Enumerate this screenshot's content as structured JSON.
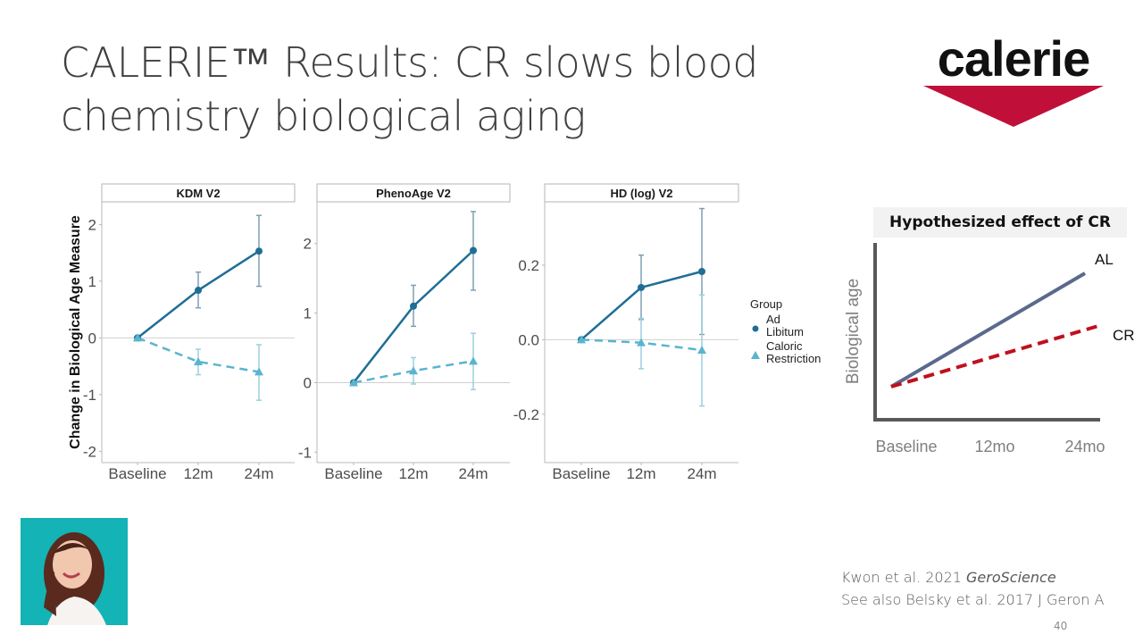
{
  "slide": {
    "title_line1": "CALERIE™ Results: CR slows blood",
    "title_line2": "chemistry biological aging",
    "logo_text": "calerie",
    "logo_color": "#c0103a",
    "reference_line1_prefix": "Kwon et al. 2021 ",
    "reference_line1_journal": "GeroScience",
    "reference_line2": "See also Belsky et al. 2017 J Geron A",
    "page_number": "40",
    "photo_alt": "speaker-photo"
  },
  "chart_data": [
    {
      "type": "line",
      "title": "KDM V2",
      "ylabel": "Change in Biological Age Measure",
      "xlabel": "",
      "x": [
        "Baseline",
        "12m",
        "24m"
      ],
      "ylim": [
        -2.2,
        2.4
      ],
      "yticks": [
        -2,
        -1,
        0,
        1,
        2
      ],
      "ytick_labels": [
        "-2",
        "-1",
        "0",
        "1",
        "2"
      ],
      "series": [
        {
          "name": "Ad Libitum",
          "color": "#1f6e96",
          "marker": "circle",
          "dash": false,
          "values": [
            0,
            0.84,
            1.53
          ],
          "err_low": [
            0,
            0.53,
            0.91
          ],
          "err_high": [
            0,
            1.16,
            2.16
          ]
        },
        {
          "name": "Caloric Restriction",
          "color": "#5ab4cf",
          "marker": "triangle",
          "dash": true,
          "values": [
            0,
            -0.42,
            -0.6
          ],
          "err_low": [
            0,
            -0.65,
            -1.1
          ],
          "err_high": [
            0,
            -0.2,
            -0.12
          ]
        }
      ]
    },
    {
      "type": "line",
      "title": "PhenoAge V2",
      "ylabel": "",
      "xlabel": "",
      "x": [
        "Baseline",
        "12m",
        "24m"
      ],
      "ylim": [
        -1.15,
        2.6
      ],
      "yticks": [
        -1,
        0,
        1,
        2
      ],
      "ytick_labels": [
        "-1",
        "0",
        "1",
        "2"
      ],
      "series": [
        {
          "name": "Ad Libitum",
          "color": "#1f6e96",
          "marker": "circle",
          "dash": false,
          "values": [
            0,
            1.1,
            1.9
          ],
          "err_low": [
            0,
            0.81,
            1.33
          ],
          "err_high": [
            0,
            1.4,
            2.46
          ]
        },
        {
          "name": "Caloric Restriction",
          "color": "#5ab4cf",
          "marker": "triangle",
          "dash": true,
          "values": [
            0,
            0.17,
            0.31
          ],
          "err_low": [
            0,
            -0.02,
            -0.1
          ],
          "err_high": [
            0,
            0.36,
            0.71
          ]
        }
      ]
    },
    {
      "type": "line",
      "title": "HD (log) V2",
      "ylabel": "",
      "xlabel": "",
      "x": [
        "Baseline",
        "12m",
        "24m"
      ],
      "ylim": [
        -0.33,
        0.37
      ],
      "yticks": [
        -0.2,
        0.0,
        0.2
      ],
      "ytick_labels": [
        "-0.2",
        "0.0",
        "0.2"
      ],
      "series": [
        {
          "name": "Ad Libitum",
          "color": "#1f6e96",
          "marker": "circle",
          "dash": false,
          "values": [
            0,
            0.14,
            0.183
          ],
          "err_low": [
            0,
            0.054,
            0.014
          ],
          "err_high": [
            0,
            0.227,
            0.352
          ]
        },
        {
          "name": "Caloric Restriction",
          "color": "#5ab4cf",
          "marker": "triangle",
          "dash": true,
          "values": [
            0,
            -0.008,
            -0.028
          ],
          "err_low": [
            0,
            -0.078,
            -0.178
          ],
          "err_high": [
            0,
            0.057,
            0.12
          ]
        }
      ]
    },
    {
      "type": "line",
      "title": "Hypothesized effect of CR",
      "ylabel": "Biological age",
      "xlabel": "",
      "x": [
        "Baseline",
        "12mo",
        "24mo"
      ],
      "series": [
        {
          "name": "AL",
          "color": "#5a6a8c",
          "dash": false,
          "values": [
            0,
            0.5,
            1.0
          ]
        },
        {
          "name": "CR",
          "color": "#c0101e",
          "dash": true,
          "values": [
            0,
            0.27,
            0.54
          ]
        }
      ]
    }
  ],
  "legend": {
    "title": "Group",
    "items": [
      {
        "line1": "Ad",
        "line2": "Libitum",
        "color": "#1f6e96",
        "marker": "circle"
      },
      {
        "line1": "Caloric",
        "line2": "Restriction",
        "color": "#5ab4cf",
        "marker": "triangle"
      }
    ]
  }
}
